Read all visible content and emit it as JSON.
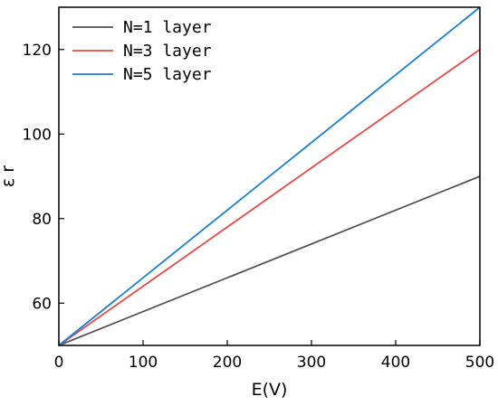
{
  "chart_data": {
    "type": "line",
    "xlabel": "E(V)",
    "ylabel": "ε r",
    "xlim": [
      0,
      500
    ],
    "ylim": [
      50,
      130
    ],
    "xticks": [
      0,
      100,
      200,
      300,
      400,
      500
    ],
    "yticks": [
      60,
      80,
      100,
      120
    ],
    "grid": false,
    "legend_position": "top-left",
    "series": [
      {
        "name": "N=1 layer",
        "color": "#555555",
        "x": [
          0,
          500
        ],
        "y": [
          50,
          90
        ]
      },
      {
        "name": "N=3 layer",
        "color": "#e84a4a",
        "x": [
          0,
          500
        ],
        "y": [
          50,
          120
        ]
      },
      {
        "name": "N=5 layer",
        "color": "#1a7fd4",
        "x": [
          0,
          500
        ],
        "y": [
          50,
          130
        ]
      }
    ]
  }
}
